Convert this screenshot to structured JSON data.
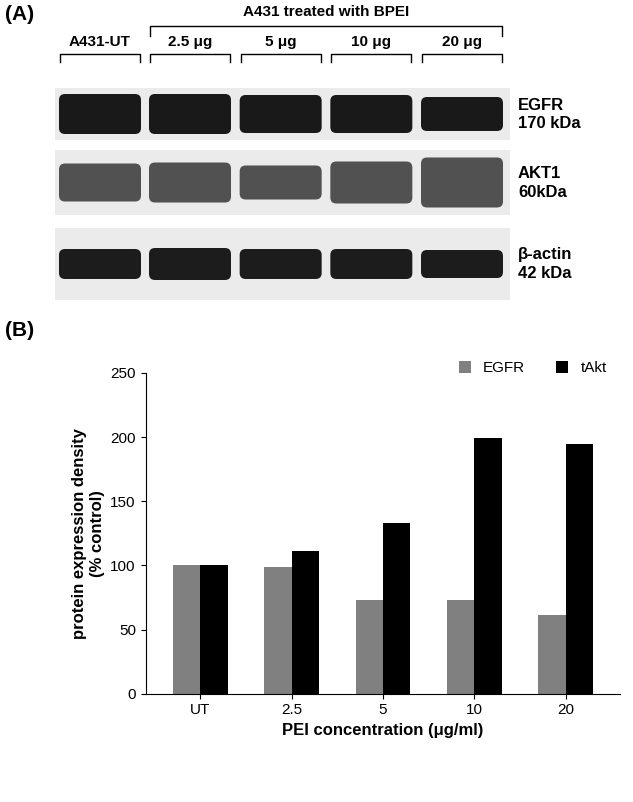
{
  "blot": {
    "label": "(A)",
    "control_lane": "A431-UT",
    "treatment": "A431 treated with BPEI",
    "treated_lanes": [
      "2.5 μg",
      "5 μg",
      "10 μg",
      "20 μg"
    ],
    "rows": [
      {
        "name": "EGFR",
        "size": "170 kDa"
      },
      {
        "name": "AKT1",
        "size": "60kDa"
      },
      {
        "name": "β-actin",
        "size": "42 kDa"
      }
    ]
  },
  "chart_data": {
    "type": "bar",
    "panel_label": "(B)",
    "xlabel": "PEI concentration (μg/ml)",
    "ylabel": "protein expression density\n(% control)",
    "categories": [
      "UT",
      "2.5",
      "5",
      "10",
      "20"
    ],
    "series": [
      {
        "name": "EGFR",
        "color": "#808080",
        "values": [
          100,
          99,
          73,
          73,
          61
        ]
      },
      {
        "name": "tAkt",
        "color": "#000000",
        "values": [
          100,
          111,
          133,
          199,
          195
        ]
      }
    ],
    "ylim": [
      0,
      250
    ],
    "yticks": [
      0,
      50,
      100,
      150,
      200,
      250
    ],
    "grid": false,
    "legend": "upper right"
  }
}
